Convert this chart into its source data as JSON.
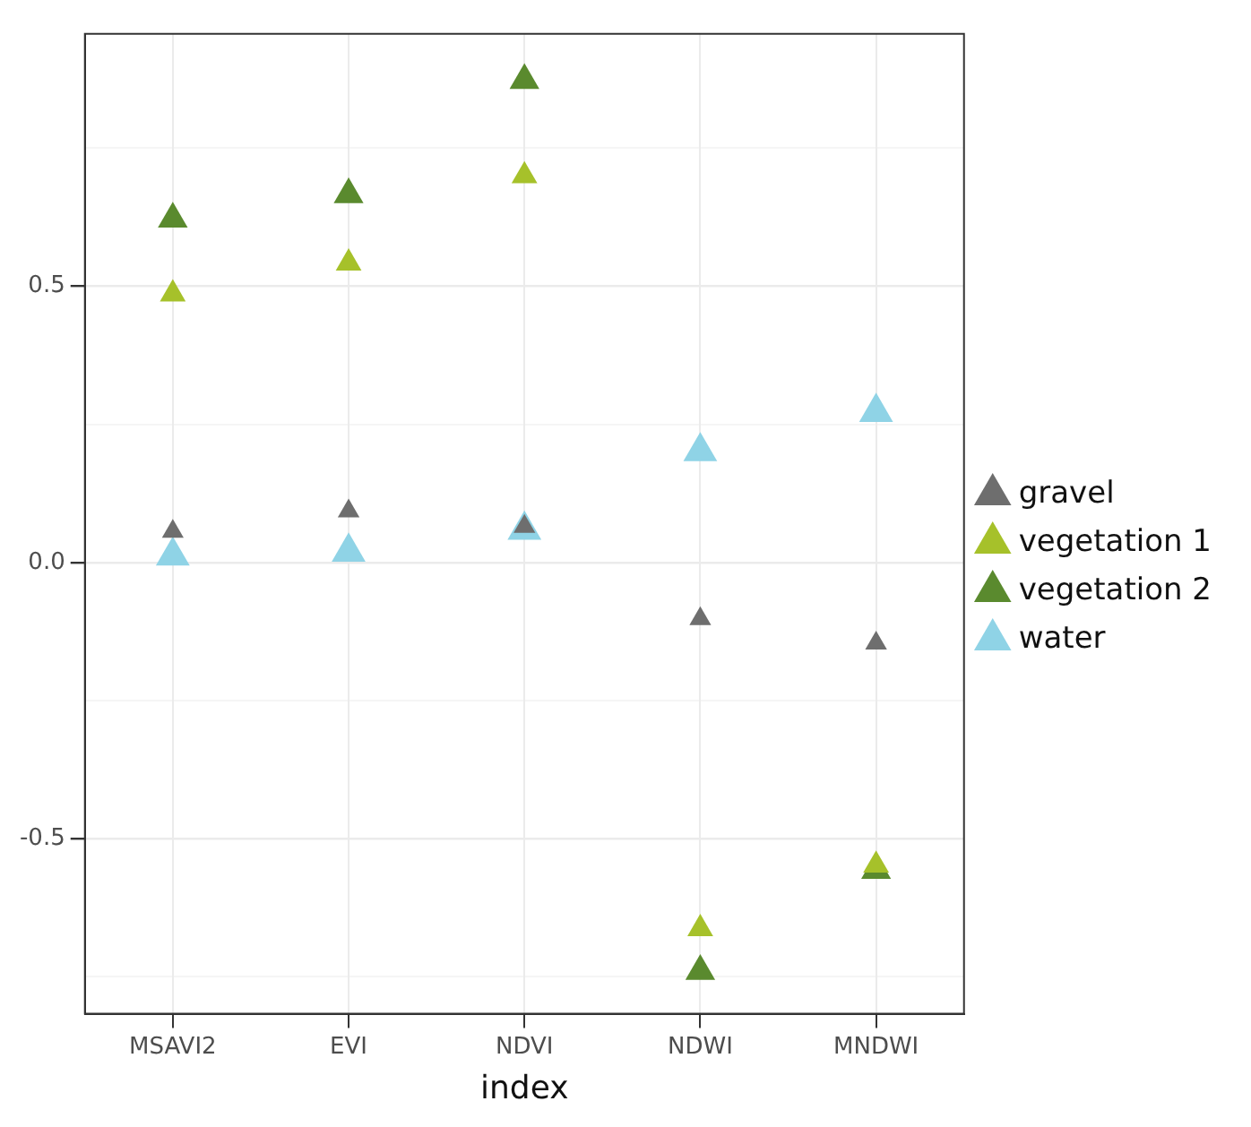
{
  "chart_data": {
    "type": "scatter",
    "xlabel": "index",
    "categories": [
      "MSAVI2",
      "EVI",
      "NDVI",
      "NDWI",
      "MNDWI"
    ],
    "series": [
      {
        "name": "gravel",
        "color": "#6e6e6e",
        "values": [
          0.056,
          0.093,
          0.065,
          -0.102,
          -0.146
        ]
      },
      {
        "name": "vegetation 1",
        "color": "#a6c12a",
        "values": [
          0.486,
          0.542,
          0.7,
          -0.663,
          -0.548
        ]
      },
      {
        "name": "vegetation 2",
        "color": "#5a8a2e",
        "values": [
          0.622,
          0.666,
          0.873,
          -0.74,
          -0.557
        ]
      },
      {
        "name": "water",
        "color": "#8fd3e6",
        "values": [
          0.012,
          0.019,
          0.059,
          0.201,
          0.272
        ]
      }
    ],
    "ylim": [
      -0.817,
      0.957
    ],
    "yticks": [
      {
        "value": -0.75,
        "label": null
      },
      {
        "value": -0.5,
        "label": "-0.5"
      },
      {
        "value": -0.25,
        "label": null
      },
      {
        "value": 0,
        "label": "0.0"
      },
      {
        "value": 0.25,
        "label": null
      },
      {
        "value": 0.5,
        "label": "0.5"
      },
      {
        "value": 0.75,
        "label": null
      }
    ],
    "grid": true,
    "legend": "right",
    "marker": "triangle"
  }
}
